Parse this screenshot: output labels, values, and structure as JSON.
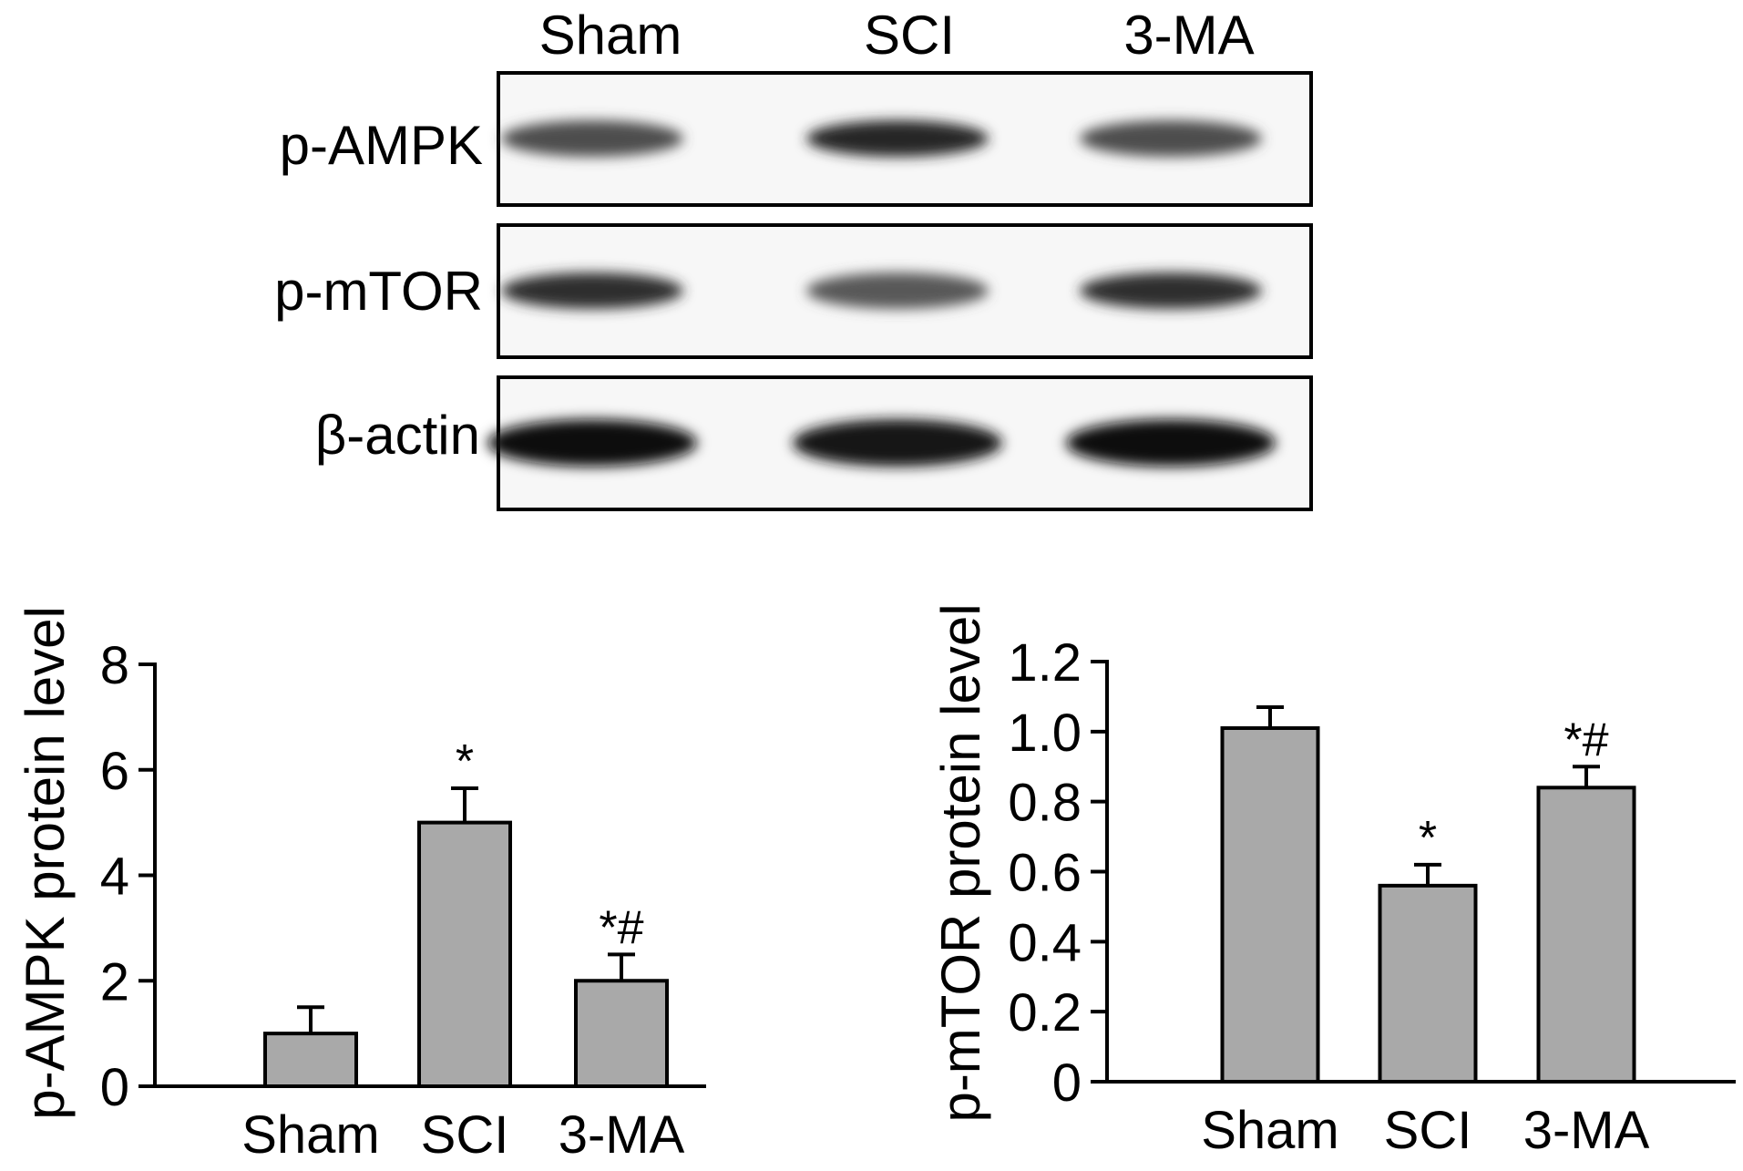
{
  "blot": {
    "lanes": [
      "Sham",
      "SCI",
      "3-MA"
    ],
    "rows": [
      {
        "label": "p-AMPK",
        "intensity": [
          0.7,
          0.85,
          0.7
        ]
      },
      {
        "label": "p-mTOR",
        "intensity": [
          0.82,
          0.65,
          0.82
        ]
      },
      {
        "label": "β-actin",
        "intensity": [
          0.95,
          0.93,
          0.95
        ]
      }
    ]
  },
  "chart_data": [
    {
      "type": "bar",
      "categories": [
        "Sham",
        "SCI",
        "3-MA"
      ],
      "values": [
        1.0,
        5.0,
        2.0
      ],
      "errors": [
        0.5,
        0.65,
        0.5
      ],
      "annotations": [
        "",
        "*",
        "*#"
      ],
      "ylabel": "p-AMPK protein level",
      "ylim": [
        0,
        8
      ],
      "yticks": [
        "0",
        "2",
        "4",
        "6",
        "8"
      ],
      "bar_color": "#a9a9a9",
      "grid": false
    },
    {
      "type": "bar",
      "categories": [
        "Sham",
        "SCI",
        "3-MA"
      ],
      "values": [
        1.01,
        0.56,
        0.84
      ],
      "errors": [
        0.06,
        0.06,
        0.06
      ],
      "annotations": [
        "",
        "*",
        "*#"
      ],
      "ylabel": "p-mTOR protein level",
      "ylim": [
        0,
        1.2
      ],
      "yticks": [
        "0",
        "0.2",
        "0.4",
        "0.6",
        "0.8",
        "1.0",
        "1.2"
      ],
      "bar_color": "#a9a9a9",
      "grid": false
    }
  ]
}
